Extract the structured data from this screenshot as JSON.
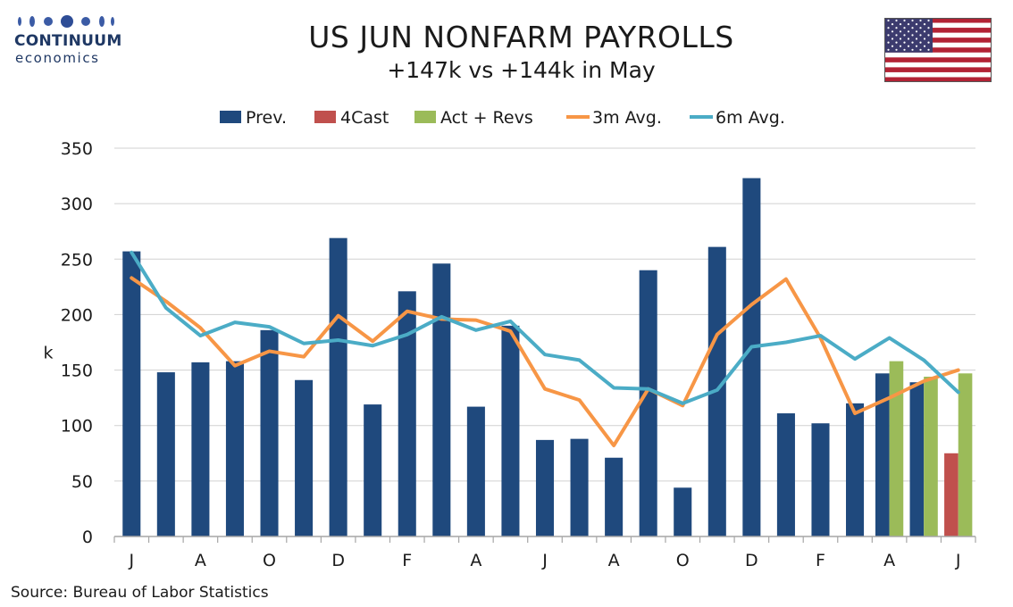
{
  "header": {
    "brand_name": "CONTINUUM",
    "brand_sub": "economics",
    "title": "US JUN NONFARM PAYROLLS",
    "subtitle": "+147k vs +144k in May"
  },
  "footer": {
    "source": "Source: Bureau of Labor Statistics"
  },
  "flag_icon": "us-flag-icon",
  "chart_data": {
    "type": "bar",
    "ylabel": "k",
    "ylim": [
      0,
      350
    ],
    "yticks": [
      0,
      50,
      100,
      150,
      200,
      250,
      300,
      350
    ],
    "grid": true,
    "legend_position": "top",
    "x_tick_labels": [
      "J",
      "A",
      "O",
      "D",
      "F",
      "A",
      "J",
      "A",
      "O",
      "D",
      "F",
      "A",
      "J"
    ],
    "months": 25,
    "series": [
      {
        "name": "Prev.",
        "kind": "bar",
        "color": "#1f497d",
        "values": [
          257,
          148,
          157,
          158,
          186,
          141,
          269,
          119,
          221,
          246,
          117,
          190,
          87,
          88,
          71,
          240,
          44,
          261,
          323,
          111,
          102,
          120,
          147,
          139,
          null
        ]
      },
      {
        "name": "4Cast",
        "kind": "bar",
        "color": "#c0504d",
        "values": [
          null,
          null,
          null,
          null,
          null,
          null,
          null,
          null,
          null,
          null,
          null,
          null,
          null,
          null,
          null,
          null,
          null,
          null,
          null,
          null,
          null,
          null,
          null,
          null,
          75
        ]
      },
      {
        "name": "Act + Revs",
        "kind": "bar",
        "color": "#9bbb59",
        "values": [
          null,
          null,
          null,
          null,
          null,
          null,
          null,
          null,
          null,
          null,
          null,
          null,
          null,
          null,
          null,
          null,
          null,
          null,
          null,
          null,
          null,
          null,
          158,
          144,
          147
        ]
      },
      {
        "name": "3m Avg.",
        "kind": "line",
        "color": "#f79646",
        "values": [
          233,
          212,
          188,
          154,
          167,
          162,
          199,
          176,
          203,
          196,
          195,
          185,
          133,
          123,
          82,
          133,
          118,
          182,
          209,
          232,
          179,
          111,
          125,
          140,
          150
        ]
      },
      {
        "name": "6m Avg.",
        "kind": "line",
        "color": "#4bacc6",
        "values": [
          256,
          206,
          181,
          193,
          189,
          174,
          177,
          172,
          182,
          198,
          186,
          194,
          164,
          159,
          134,
          133,
          120,
          132,
          171,
          175,
          181,
          160,
          179,
          159,
          130
        ]
      }
    ]
  }
}
